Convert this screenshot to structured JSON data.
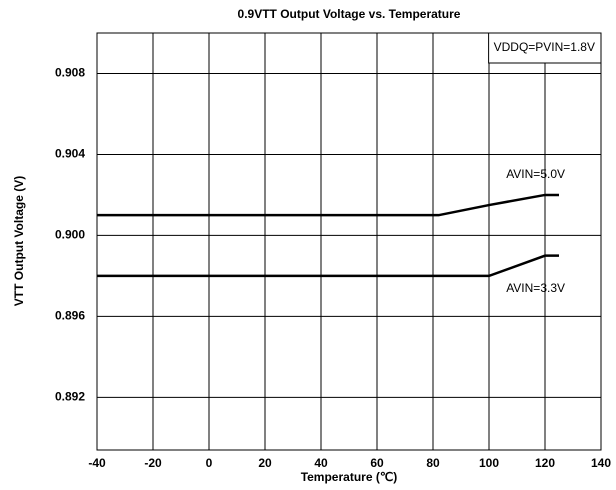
{
  "chart_data": {
    "type": "line",
    "title": "0.9VTT Output Voltage vs. Temperature",
    "x_label": "Temperature (℃)",
    "y_label": "VTT Output Voltage (V)",
    "annotation": "VDDQ=PVIN=1.8V",
    "xlim": [
      -40,
      140
    ],
    "xticks": [
      -40,
      -20,
      0,
      20,
      40,
      60,
      80,
      100,
      120,
      140
    ],
    "ylim": [
      0.8894,
      0.91
    ],
    "yticks": [
      0.892,
      0.896,
      {
        "value": 0.9,
        "label": "0.900"
      },
      0.904,
      0.908
    ],
    "grid": true,
    "series": [
      {
        "name": "AVIN=5.0V",
        "color": "#000000",
        "x": [
          -40,
          82,
          100,
          120,
          125
        ],
        "values": [
          0.901,
          0.901,
          0.9015,
          0.902,
          0.902
        ]
      },
      {
        "name": "AVIN=3.3V",
        "color": "#000000",
        "x": [
          -40,
          100,
          120,
          125
        ],
        "values": [
          0.898,
          0.898,
          0.899,
          0.899
        ]
      }
    ]
  }
}
